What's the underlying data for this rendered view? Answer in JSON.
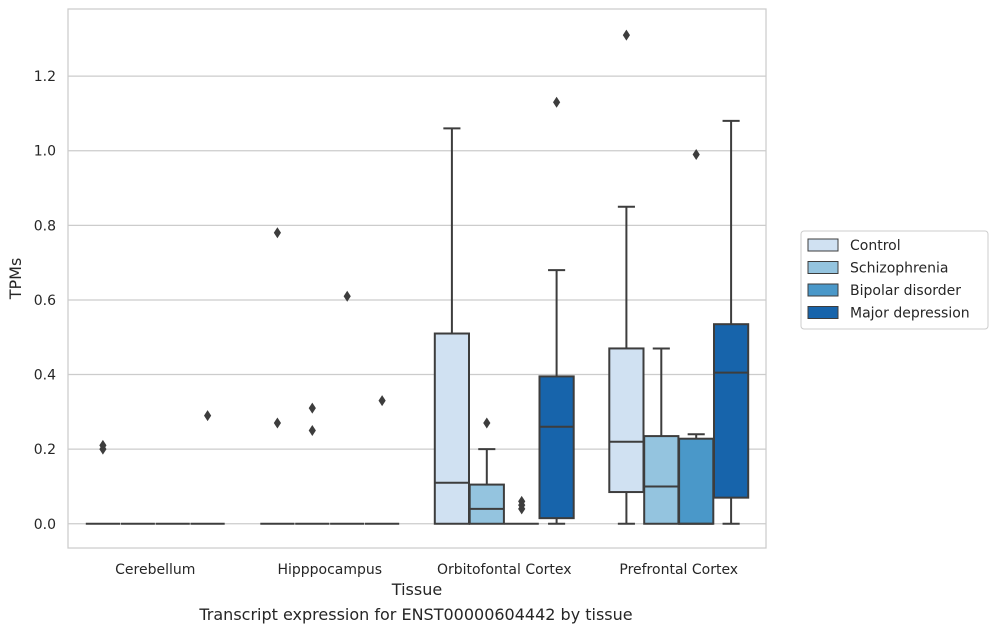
{
  "caption": "Transcript expression for ENST00000604442 by tissue",
  "chart_data": {
    "type": "box",
    "xlabel": "Tissue",
    "ylabel": "TPMs",
    "categories": [
      "Cerebellum",
      "Hipppocampus",
      "Orbitofontal Cortex",
      "Prefrontal Cortex"
    ],
    "ylim": [
      -0.065,
      1.38
    ],
    "yticks": [
      0.0,
      0.2,
      0.4,
      0.6,
      0.8,
      1.0,
      1.2
    ],
    "ytick_labels": [
      "0.0",
      "0.2",
      "0.4",
      "0.6",
      "0.8",
      "1.0",
      "1.2"
    ],
    "grid": "horizontal",
    "legend_position": "right",
    "series": [
      {
        "name": "Control",
        "color": "#d0e1f2",
        "boxes": [
          {
            "q1": 0,
            "median": 0,
            "q3": 0,
            "whisker_low": 0,
            "whisker_high": 0,
            "outliers": [
              0.21,
              0.2
            ]
          },
          {
            "q1": 0,
            "median": 0,
            "q3": 0,
            "whisker_low": 0,
            "whisker_high": 0,
            "outliers": [
              0.78,
              0.27
            ]
          },
          {
            "q1": 0,
            "median": 0.11,
            "q3": 0.51,
            "whisker_low": 0,
            "whisker_high": 1.06,
            "outliers": []
          },
          {
            "q1": 0.085,
            "median": 0.22,
            "q3": 0.47,
            "whisker_low": 0,
            "whisker_high": 0.85,
            "outliers": [
              1.31
            ]
          }
        ]
      },
      {
        "name": "Schizophrenia",
        "color": "#94c4df",
        "boxes": [
          {
            "q1": 0,
            "median": 0,
            "q3": 0,
            "whisker_low": 0,
            "whisker_high": 0,
            "outliers": []
          },
          {
            "q1": 0,
            "median": 0,
            "q3": 0,
            "whisker_low": 0,
            "whisker_high": 0,
            "outliers": [
              0.31,
              0.25
            ]
          },
          {
            "q1": 0,
            "median": 0.04,
            "q3": 0.105,
            "whisker_low": 0,
            "whisker_high": 0.2,
            "outliers": [
              0.27
            ]
          },
          {
            "q1": 0,
            "median": 0.1,
            "q3": 0.235,
            "whisker_low": 0,
            "whisker_high": 0.47,
            "outliers": []
          }
        ]
      },
      {
        "name": "Bipolar disorder",
        "color": "#4a98c9",
        "boxes": [
          {
            "q1": 0,
            "median": 0,
            "q3": 0,
            "whisker_low": 0,
            "whisker_high": 0,
            "outliers": []
          },
          {
            "q1": 0,
            "median": 0,
            "q3": 0,
            "whisker_low": 0,
            "whisker_high": 0,
            "outliers": [
              0.61
            ]
          },
          {
            "q1": 0,
            "median": 0,
            "q3": 0,
            "whisker_low": 0,
            "whisker_high": 0,
            "outliers": [
              0.06,
              0.05,
              0.04
            ]
          },
          {
            "q1": 0,
            "median": 0.0,
            "q3": 0.228,
            "whisker_low": 0,
            "whisker_high": 0.24,
            "outliers": [
              0.99
            ]
          }
        ]
      },
      {
        "name": "Major depression",
        "color": "#1764ab",
        "boxes": [
          {
            "q1": 0,
            "median": 0,
            "q3": 0,
            "whisker_low": 0,
            "whisker_high": 0,
            "outliers": [
              0.29
            ]
          },
          {
            "q1": 0,
            "median": 0,
            "q3": 0,
            "whisker_low": 0,
            "whisker_high": 0,
            "outliers": [
              0.33
            ]
          },
          {
            "q1": 0.015,
            "median": 0.26,
            "q3": 0.395,
            "whisker_low": 0,
            "whisker_high": 0.68,
            "outliers": [
              1.13
            ]
          },
          {
            "q1": 0.07,
            "median": 0.405,
            "q3": 0.535,
            "whisker_low": 0,
            "whisker_high": 1.08,
            "outliers": []
          }
        ]
      }
    ]
  }
}
